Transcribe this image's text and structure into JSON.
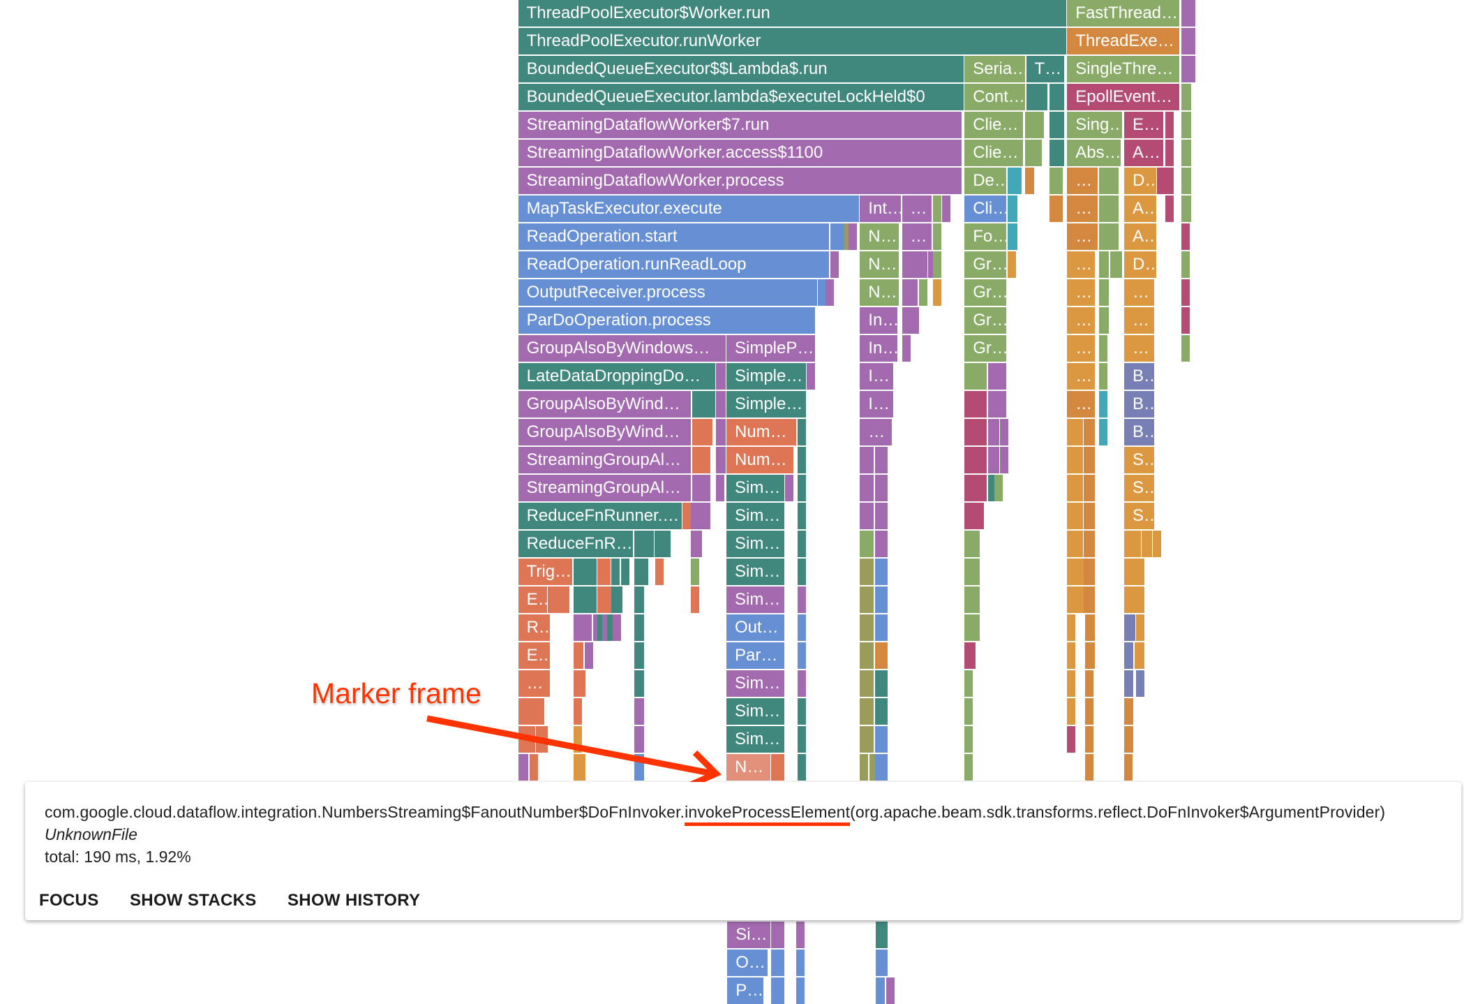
{
  "palette": {
    "t": "#40877e",
    "g": "#8aab67",
    "o": "#d4873f",
    "a": "#db9840",
    "p": "#a36aaf",
    "b": "#6790d4",
    "k": "#b34b72",
    "c": "#de7656",
    "lc": "#e2907a",
    "cy": "#42a8b8",
    "s": "#787fb4",
    "ol": "#9a9d5a"
  },
  "flame": {
    "rows": [
      [
        "ThreadPoolExecutor$Worker.run",
        "FastThread…"
      ],
      [
        "ThreadPoolExecutor.runWorker",
        "ThreadExe…"
      ],
      [
        "BoundedQueueExecutor$$Lambda$.run",
        "Seria…",
        "T…",
        "SingleThre…"
      ],
      [
        "BoundedQueueExecutor.lambda$executeLockHeld$0",
        "Cont…",
        "EpollEvent…"
      ],
      [
        "StreamingDataflowWorker$7.run",
        "Clie…",
        "Sing…",
        "E…"
      ],
      [
        "StreamingDataflowWorker.access$1100",
        "Clie…",
        "Abs…",
        "A…"
      ],
      [
        "StreamingDataflowWorker.process",
        "De…",
        "…",
        "D…"
      ],
      [
        "MapTaskExecutor.execute",
        "Int…",
        "…",
        "Cli…",
        "…",
        "A…"
      ],
      [
        "ReadOperation.start",
        "N…",
        "…",
        "Fo…",
        "…",
        "A…"
      ],
      [
        "ReadOperation.runReadLoop",
        "N…",
        "Gr…",
        "…",
        "D…"
      ],
      [
        "OutputReceiver.process",
        "N…",
        "Gr…",
        "…",
        "…"
      ],
      [
        "ParDoOperation.process",
        "In…",
        "Gr…",
        "…",
        "…"
      ],
      [
        "GroupAlsoByWindows…",
        "SimpleP…",
        "In…",
        "Gr…",
        "…",
        "…"
      ],
      [
        "LateDataDroppingDo…",
        "Simple…",
        "I…",
        "…",
        "B…"
      ],
      [
        "GroupAlsoByWind…",
        "Simple…",
        "I…",
        "…",
        "B…"
      ],
      [
        "GroupAlsoByWind…",
        "Num…",
        "…",
        "B…"
      ],
      [
        "StreamingGroupAl…",
        "Num…",
        "S…"
      ],
      [
        "StreamingGroupAl…",
        "Sim…",
        "S…"
      ],
      [
        "ReduceFnRunner.…",
        "Sim…",
        "S…"
      ],
      [
        "ReduceFnR…",
        "Sim…"
      ],
      [
        "Trig…",
        "Sim…"
      ],
      [
        "E…",
        "Sim…"
      ],
      [
        "R…",
        "Out…"
      ],
      [
        "E…",
        "Par…"
      ],
      [
        "…",
        "Sim…"
      ],
      [
        "Sim…"
      ],
      [
        "Sim…"
      ],
      [
        "N…"
      ],
      [],
      [],
      [],
      [],
      [],
      [
        "Si…"
      ],
      [
        "O…"
      ],
      [
        "P…"
      ]
    ]
  },
  "tooltip": {
    "signature_prefix": "com.google.cloud.dataflow.integration.NumbersStreaming$FanoutNumber$DoFnInvoker.",
    "signature_method": "invokeProcessElement",
    "signature_params": "(org.apache.beam.sdk.transforms.reflect.DoFnInvoker$ArgumentProvider)",
    "file": "UnknownFile",
    "total": "total: 190 ms, 1.92%",
    "buttons": {
      "focus": "FOCUS",
      "show_stacks": "SHOW STACKS",
      "show_history": "SHOW HISTORY"
    }
  },
  "annotation": {
    "text": "Marker frame",
    "color": "#ff3300"
  }
}
